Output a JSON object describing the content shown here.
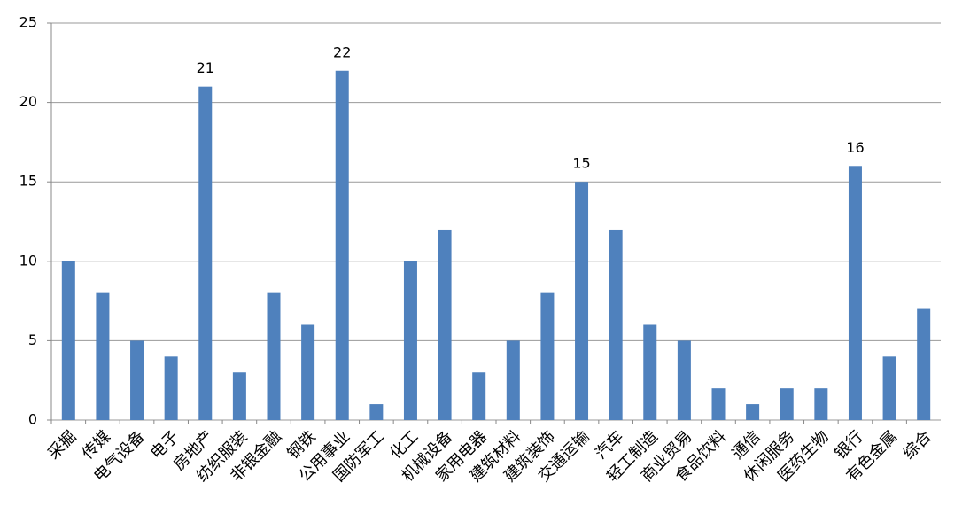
{
  "chart_data": {
    "type": "bar",
    "categories": [
      "采掘",
      "传媒",
      "电气设备",
      "电子",
      "房地产",
      "纺织服装",
      "非银金融",
      "钢铁",
      "公用事业",
      "国防军工",
      "化工",
      "机械设备",
      "家用电器",
      "建筑材料",
      "建筑装饰",
      "交通运输",
      "汽车",
      "轻工制造",
      "商业贸易",
      "食品饮料",
      "通信",
      "休闲服务",
      "医药生物",
      "银行",
      "有色金属",
      "综合"
    ],
    "values": [
      10,
      8,
      5,
      4,
      21,
      3,
      8,
      6,
      22,
      1,
      10,
      12,
      3,
      5,
      8,
      15,
      12,
      6,
      5,
      2,
      1,
      2,
      2,
      16,
      4,
      7
    ],
    "value_labels": [
      null,
      null,
      null,
      null,
      "21",
      null,
      null,
      null,
      "22",
      null,
      null,
      null,
      null,
      null,
      null,
      "15",
      null,
      null,
      null,
      null,
      null,
      null,
      null,
      "16",
      null,
      null
    ],
    "color": "#4f81bd",
    "ylim": [
      0,
      25
    ],
    "yticks": [
      0,
      5,
      10,
      15,
      20,
      25
    ],
    "grid": true
  }
}
